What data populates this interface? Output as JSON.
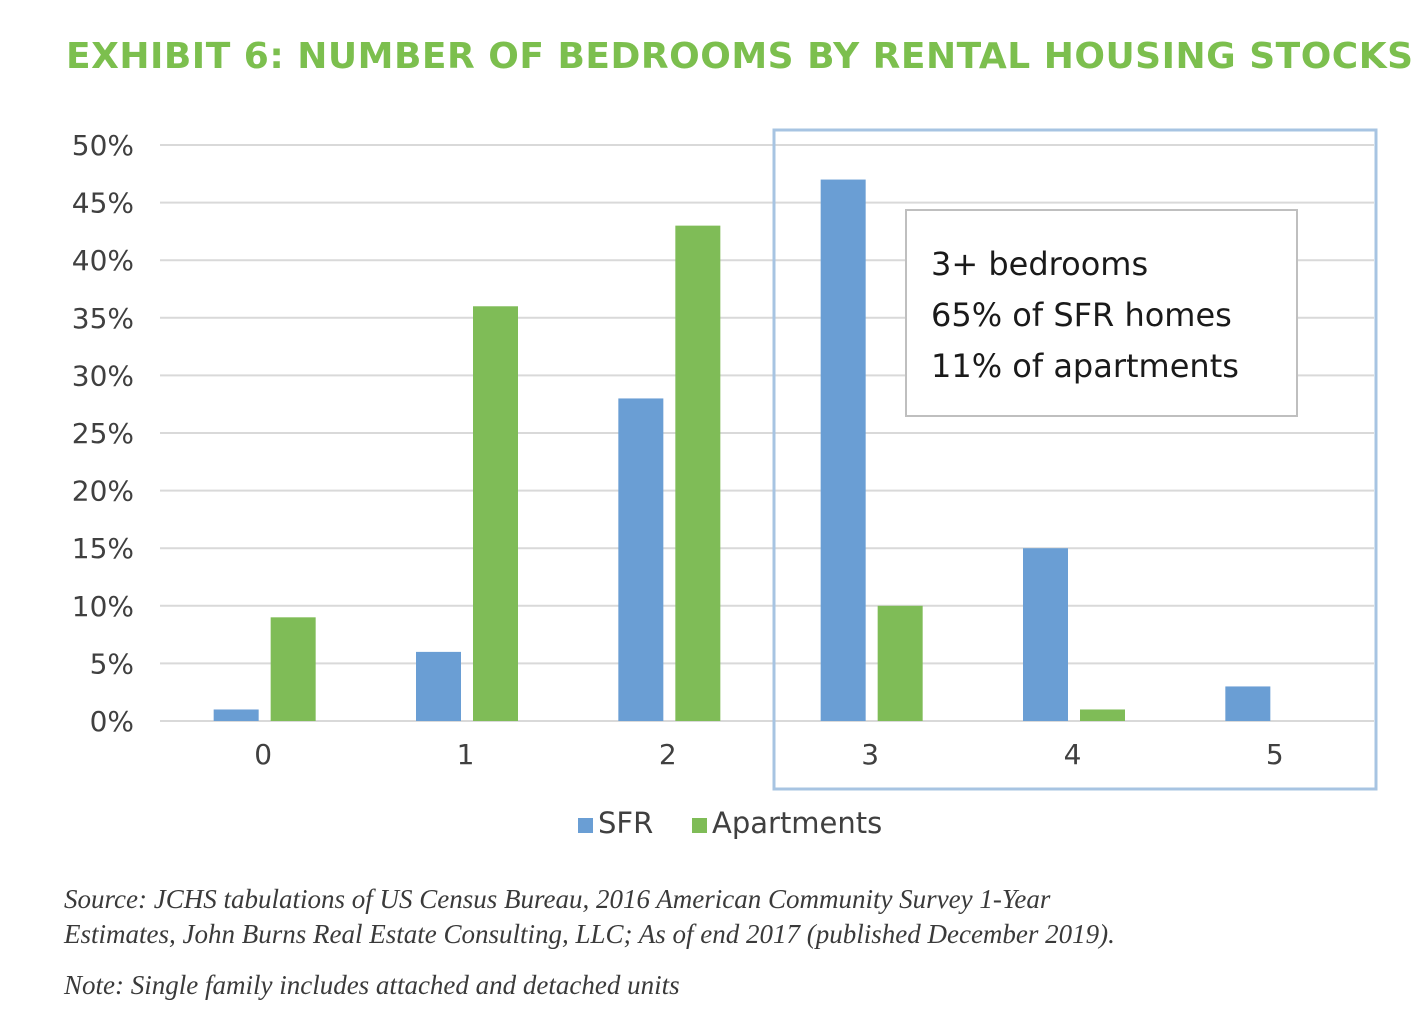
{
  "title": "EXHIBIT 6: NUMBER OF BEDROOMS BY RENTAL HOUSING STOCKS",
  "colors": {
    "title": "#7cbf4e",
    "sfr": "#6a9ed4",
    "apartments": "#7fbc57",
    "grid": "#d9d9d9",
    "highlight_box": "#a7c4e2",
    "annotation_border": "#bfbfbf"
  },
  "chart_data": {
    "type": "bar",
    "categories": [
      "0",
      "1",
      "2",
      "3",
      "4",
      "5"
    ],
    "series": [
      {
        "name": "SFR",
        "values": [
          1,
          6,
          28,
          47,
          15,
          3
        ]
      },
      {
        "name": "Apartments",
        "values": [
          9,
          36,
          43,
          10,
          1,
          0
        ]
      }
    ],
    "ylim": [
      0,
      50
    ],
    "y_ticks": [
      0,
      5,
      10,
      15,
      20,
      25,
      30,
      35,
      40,
      45,
      50
    ],
    "y_tick_format": "percent",
    "grid": true,
    "legend_position": "bottom-center",
    "highlighted_categories": [
      "3",
      "4",
      "5"
    ]
  },
  "annotation": {
    "lines": [
      "3+ bedrooms",
      "65% of SFR homes",
      "11% of apartments"
    ]
  },
  "source_lines": [
    "Source: JCHS tabulations of US Census Bureau, 2016 American Community Survey 1-Year",
    "Estimates, John Burns Real Estate Consulting, LLC; As of end 2017 (published December 2019)."
  ],
  "note": "Note: Single family includes attached and detached units"
}
